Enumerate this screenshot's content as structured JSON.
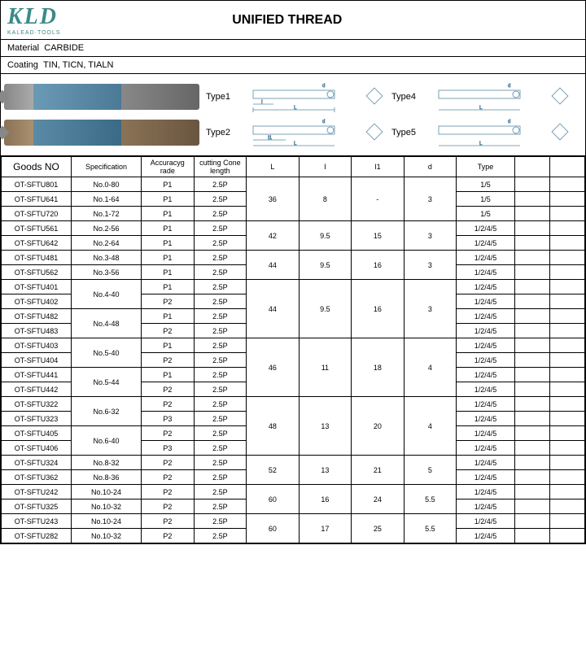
{
  "logo": {
    "main": "KLD",
    "sub": "KALEAD·TOOLS"
  },
  "title": "UNIFIED THREAD",
  "material_label": "Material",
  "material": "CARBIDE",
  "coating_label": "Coating",
  "coating": "TIN, TICN, TIALN",
  "types": {
    "t1": "Type1",
    "t2": "Type2",
    "t4": "Type4",
    "t5": "Type5"
  },
  "dim_labels": {
    "d": "d",
    "L": "L",
    "I": "I",
    "I1": "I1",
    "Ik": "Ik"
  },
  "headers": {
    "goods": "Goods NO",
    "spec": "Specification",
    "acc": "Accuracyg rade",
    "cone": "cutting Cone length",
    "L": "L",
    "I": "I",
    "I1": "I1",
    "d": "d",
    "type": "Type"
  },
  "rows": [
    {
      "g": "OT-SFTU801",
      "s": "No.0-80",
      "a": "P1",
      "c": "2.5P",
      "t": "1/5"
    },
    {
      "g": "OT-SFTU641",
      "s": "No.1-64",
      "a": "P1",
      "c": "2.5P",
      "t": "1/5"
    },
    {
      "g": "OT-SFTU720",
      "s": "No.1-72",
      "a": "P1",
      "c": "2.5P",
      "t": "1/5"
    },
    {
      "g": "OT-SFTU561",
      "s": "No.2-56",
      "a": "P1",
      "c": "2.5P",
      "t": "1/2/4/5"
    },
    {
      "g": "OT-SFTU642",
      "s": "No.2-64",
      "a": "P1",
      "c": "2.5P",
      "t": "1/2/4/5"
    },
    {
      "g": "OT-SFTU481",
      "s": "No.3-48",
      "a": "P1",
      "c": "2.5P",
      "t": "1/2/4/5"
    },
    {
      "g": "OT-SFTU562",
      "s": "No.3-56",
      "a": "P1",
      "c": "2.5P",
      "t": "1/2/4/5"
    },
    {
      "g": "OT-SFTU401",
      "s": "No.4-40",
      "a": "P1",
      "c": "2.5P",
      "t": "1/2/4/5",
      "sr": 2
    },
    {
      "g": "OT-SFTU402",
      "a": "P2",
      "c": "2.5P",
      "t": "1/2/4/5"
    },
    {
      "g": "OT-SFTU482",
      "s": "No.4-48",
      "a": "P1",
      "c": "2.5P",
      "t": "1/2/4/5",
      "sr": 2
    },
    {
      "g": "OT-SFTU483",
      "a": "P2",
      "c": "2.5P",
      "t": "1/2/4/5"
    },
    {
      "g": "OT-SFTU403",
      "s": "No.5-40",
      "a": "P1",
      "c": "2.5P",
      "t": "1/2/4/5",
      "sr": 2
    },
    {
      "g": "OT-SFTU404",
      "a": "P2",
      "c": "2.5P",
      "t": "1/2/4/5"
    },
    {
      "g": "OT-SFTU441",
      "s": "No.5-44",
      "a": "P1",
      "c": "2.5P",
      "t": "1/2/4/5",
      "sr": 2
    },
    {
      "g": "OT-SFTU442",
      "a": "P2",
      "c": "2.5P",
      "t": "1/2/4/5"
    },
    {
      "g": "OT-SFTU322",
      "s": "No.6-32",
      "a": "P2",
      "c": "2.5P",
      "t": "1/2/4/5",
      "sr": 2
    },
    {
      "g": "OT-SFTU323",
      "a": "P3",
      "c": "2.5P",
      "t": "1/2/4/5"
    },
    {
      "g": "OT-SFTU405",
      "s": "No.6-40",
      "a": "P2",
      "c": "2.5P",
      "t": "1/2/4/5",
      "sr": 2
    },
    {
      "g": "OT-SFTU406",
      "a": "P3",
      "c": "2.5P",
      "t": "1/2/4/5"
    },
    {
      "g": "OT-SFTU324",
      "s": "No.8-32",
      "a": "P2",
      "c": "2.5P",
      "t": "1/2/4/5"
    },
    {
      "g": "OT-SFTU362",
      "s": "No.8-36",
      "a": "P2",
      "c": "2.5P",
      "t": "1/2/4/5"
    },
    {
      "g": "OT-SFTU242",
      "s": "No.10-24",
      "a": "P2",
      "c": "2.5P",
      "t": "1/2/4/5"
    },
    {
      "g": "OT-SFTU325",
      "s": "No.10-32",
      "a": "P2",
      "c": "2.5P",
      "t": "1/2/4/5"
    },
    {
      "g": "OT-SFTU243",
      "s": "No.10-24",
      "a": "P2",
      "c": "2.5P",
      "t": "1/2/4/5"
    },
    {
      "g": "OT-SFTU282",
      "s": "No.10-32",
      "a": "P2",
      "c": "2.5P",
      "t": "1/2/4/5"
    }
  ],
  "dim_groups": [
    {
      "start": 0,
      "span": 3,
      "L": "36",
      "I": "8",
      "I1": "-",
      "d": "3"
    },
    {
      "start": 3,
      "span": 2,
      "L": "42",
      "I": "9.5",
      "I1": "15",
      "d": "3"
    },
    {
      "start": 5,
      "span": 2,
      "L": "44",
      "I": "9.5",
      "I1": "16",
      "d": "3"
    },
    {
      "start": 7,
      "span": 4,
      "L": "44",
      "I": "9.5",
      "I1": "16",
      "d": "3"
    },
    {
      "start": 11,
      "span": 4,
      "L": "46",
      "I": "11",
      "I1": "18",
      "d": "4"
    },
    {
      "start": 15,
      "span": 4,
      "L": "48",
      "I": "13",
      "I1": "20",
      "d": "4"
    },
    {
      "start": 19,
      "span": 2,
      "L": "52",
      "I": "13",
      "I1": "21",
      "d": "5"
    },
    {
      "start": 21,
      "span": 2,
      "L": "60",
      "I": "16",
      "I1": "24",
      "d": "5.5"
    },
    {
      "start": 23,
      "span": 2,
      "L": "60",
      "I": "17",
      "I1": "25",
      "d": "5.5"
    }
  ],
  "colors": {
    "border": "#000000",
    "logo": "#3a8a8a",
    "tool_blue": "#5a8aa5"
  }
}
